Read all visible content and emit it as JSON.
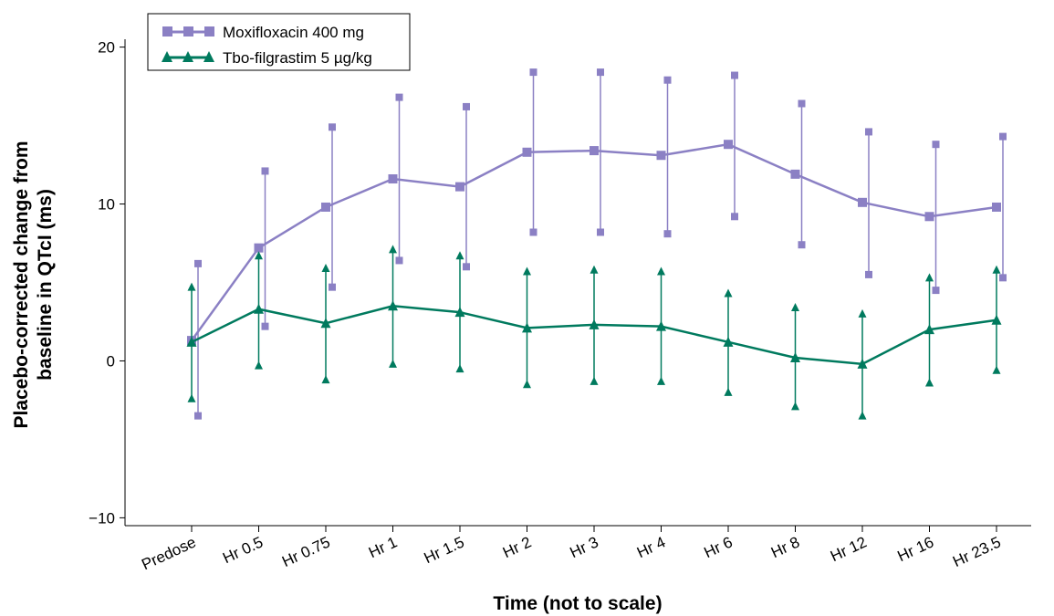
{
  "chart_data": {
    "type": "line",
    "title": "",
    "xlabel": "Time (not to scale)",
    "ylabel_line1": "Placebo-corrected change from",
    "ylabel_line2": "baseline in QTcI (ms)",
    "categories": [
      "Predose",
      "Hr 0.5",
      "Hr 0.75",
      "Hr 1",
      "Hr 1.5",
      "Hr 2",
      "Hr 3",
      "Hr 4",
      "Hr 6",
      "Hr 8",
      "Hr 12",
      "Hr 16",
      "Hr 23.5"
    ],
    "ylim": [
      -10.5,
      20.5
    ],
    "yticks": [
      -10,
      0,
      10,
      20
    ],
    "ytick_labels": [
      "−10",
      "0",
      "10",
      "20"
    ],
    "grid": false,
    "legend_position": "top-left",
    "series": [
      {
        "name": "Moxifloxacin 400 mg",
        "marker": "square",
        "color": "#8b80c4",
        "values": [
          1.3,
          7.2,
          9.8,
          11.6,
          11.1,
          13.3,
          13.4,
          13.1,
          13.8,
          11.9,
          10.1,
          9.2,
          9.8
        ],
        "ci_lower": [
          -3.5,
          2.2,
          4.7,
          6.4,
          6.0,
          8.2,
          8.2,
          8.1,
          9.2,
          7.4,
          5.5,
          4.5,
          5.3
        ],
        "ci_upper": [
          6.2,
          12.1,
          14.9,
          16.8,
          16.2,
          18.4,
          18.4,
          17.9,
          18.2,
          16.4,
          14.6,
          13.8,
          14.3
        ]
      },
      {
        "name": "Tbo-filgrastim 5 µg/kg",
        "marker": "triangle",
        "color": "#007a5e",
        "values": [
          1.2,
          3.3,
          2.4,
          3.5,
          3.1,
          2.1,
          2.3,
          2.2,
          1.2,
          0.2,
          -0.2,
          2.0,
          2.6
        ],
        "ci_lower": [
          -2.4,
          -0.3,
          -1.2,
          -0.2,
          -0.5,
          -1.5,
          -1.3,
          -1.3,
          -2.0,
          -2.9,
          -3.5,
          -1.4,
          -0.6
        ],
        "ci_upper": [
          4.7,
          6.7,
          5.9,
          7.1,
          6.7,
          5.7,
          5.8,
          5.7,
          4.3,
          3.4,
          3.0,
          5.3,
          5.8
        ]
      }
    ]
  }
}
